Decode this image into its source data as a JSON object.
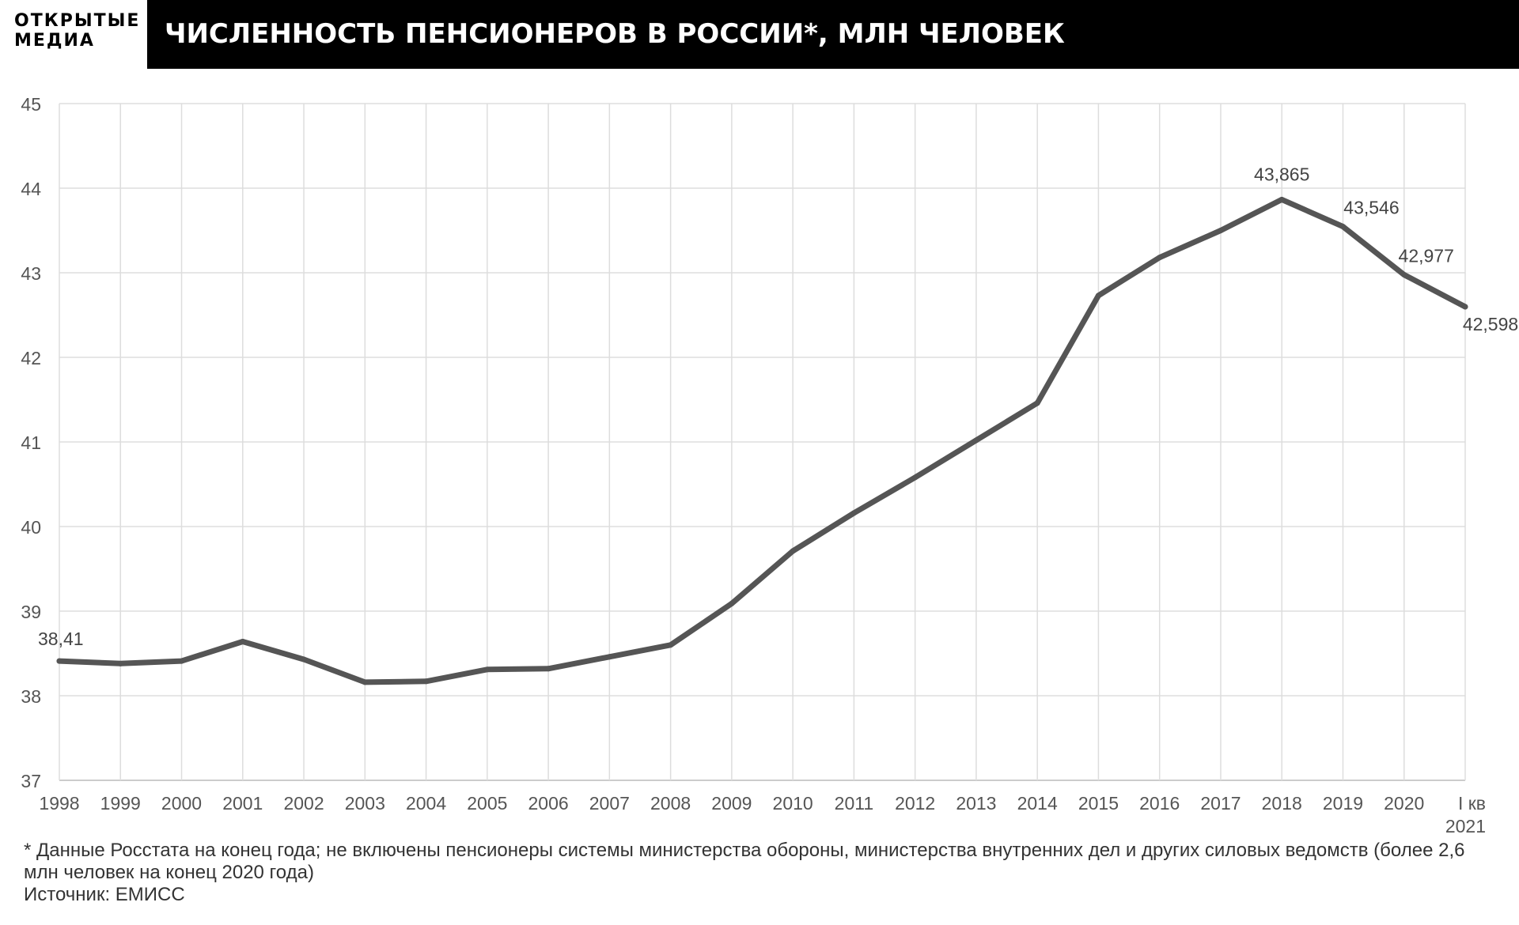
{
  "brand": {
    "line1": "ОТКРЫТЫЕ",
    "line2": "МЕДИА"
  },
  "header": {
    "title": "ЧИСЛЕННОСТЬ ПЕНСИОНЕРОВ В РОССИИ*, МЛН ЧЕЛОВЕК"
  },
  "footnote": {
    "note": "* Данные Росстата на конец года; не включены пенсионеры системы министерства обороны, министерства внутренних дел и других силовых ведомств (более 2,6 млн человек на конец 2020 года)",
    "source": "Источник: ЕМИСС"
  },
  "colors": {
    "line": "#555555",
    "grid": "#dddddd",
    "axis": "#bbbbbb",
    "tick_text": "#555555"
  },
  "chart_data": {
    "type": "line",
    "categories": [
      "1998",
      "1999",
      "2000",
      "2001",
      "2002",
      "2003",
      "2004",
      "2005",
      "2006",
      "2007",
      "2008",
      "2009",
      "2010",
      "2011",
      "2012",
      "2013",
      "2014",
      "2015",
      "2016",
      "2017",
      "2018",
      "2019",
      "2020",
      "I кв\n2021"
    ],
    "series": [
      {
        "values": [
          38.41,
          38.38,
          38.41,
          38.64,
          38.43,
          38.16,
          38.17,
          38.31,
          38.32,
          38.46,
          38.6,
          39.09,
          39.71,
          40.16,
          40.58,
          41.02,
          41.46,
          42.73,
          43.18,
          43.5,
          43.865,
          43.546,
          42.977,
          42.598
        ]
      }
    ],
    "ylim": [
      37,
      45
    ],
    "yticks": [
      "37",
      "38",
      "39",
      "40",
      "41",
      "42",
      "43",
      "44",
      "45"
    ],
    "data_labels": [
      {
        "index": 0,
        "text": "38,41"
      },
      {
        "index": 20,
        "text": "43,865"
      },
      {
        "index": 21,
        "text": "43,546"
      },
      {
        "index": 22,
        "text": "42,977"
      },
      {
        "index": 23,
        "text": "42,598"
      }
    ],
    "grid": true,
    "legend": "none"
  }
}
